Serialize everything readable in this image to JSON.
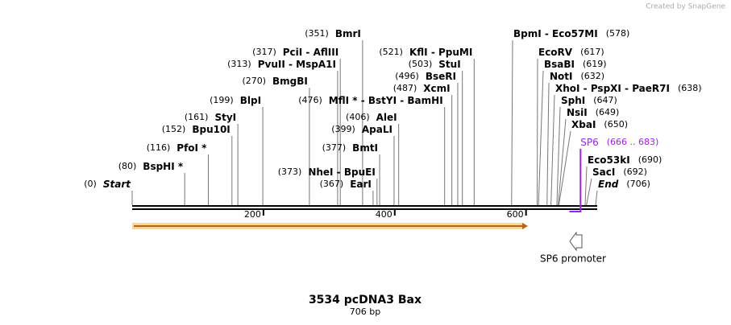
{
  "header": {
    "credit": "Created by SnapGene"
  },
  "sites": [
    {
      "name": "Start",
      "position": {
        "value": 0,
        "label": "(0)"
      }
    },
    {
      "name": "BspHI *",
      "position": {
        "value": 80,
        "label": "(80)"
      }
    },
    {
      "name": "PfoI *",
      "position": {
        "value": 116,
        "label": "(116)"
      }
    },
    {
      "name": "Bpu10I",
      "position": {
        "value": 152,
        "label": "(152)"
      }
    },
    {
      "name": "StyI",
      "position": {
        "value": 161,
        "label": "(161)"
      }
    },
    {
      "name": "BlpI",
      "position": {
        "value": 199,
        "label": "(199)"
      }
    },
    {
      "name": "BmgBI",
      "position": {
        "value": 270,
        "label": "(270)"
      }
    },
    {
      "name": "PvuII  - MspA1I",
      "position": {
        "value": 313,
        "label": "(313)"
      }
    },
    {
      "name": "PciI  - AflIII",
      "position": {
        "value": 317,
        "label": "(317)"
      }
    },
    {
      "name": "BmrI",
      "position": {
        "value": 351,
        "label": "(351)"
      }
    },
    {
      "name": "EarI",
      "position": {
        "value": 367,
        "label": "(367)"
      }
    },
    {
      "name": "NheI  - BpuEI",
      "position": {
        "value": 373,
        "label": "(373)"
      }
    },
    {
      "name": "BmtI",
      "position": {
        "value": 377,
        "label": "(377)"
      }
    },
    {
      "name": "ApaLI",
      "position": {
        "value": 399,
        "label": "(399)"
      }
    },
    {
      "name": "AleI",
      "position": {
        "value": 406,
        "label": "(406)"
      }
    },
    {
      "name": "MflI * - BstYI - BamHI",
      "position": {
        "value": 476,
        "label": "(476)"
      }
    },
    {
      "name": "XcmI",
      "position": {
        "value": 487,
        "label": "(487)"
      }
    },
    {
      "name": "BseRI",
      "position": {
        "value": 496,
        "label": "(496)"
      }
    },
    {
      "name": "StuI",
      "position": {
        "value": 503,
        "label": "(503)"
      }
    },
    {
      "name": "KflI  - PpuMI",
      "position": {
        "value": 521,
        "label": "(521)"
      }
    },
    {
      "name": "BpmI  - Eco57MI",
      "position": {
        "value": 578,
        "label": "(578)"
      }
    },
    {
      "name": "EcoRV",
      "position": {
        "value": 617,
        "label": "(617)"
      }
    },
    {
      "name": "BsaBI",
      "position": {
        "value": 619,
        "label": "(619)"
      }
    },
    {
      "name": "NotI",
      "position": {
        "value": 632,
        "label": "(632)"
      }
    },
    {
      "name": "XhoI  - PspXI  - PaeR7I",
      "position": {
        "value": 638,
        "label": "(638)"
      }
    },
    {
      "name": "SphI",
      "position": {
        "value": 647,
        "label": "(647)"
      }
    },
    {
      "name": "NsiI",
      "position": {
        "value": 649,
        "label": "(649)"
      }
    },
    {
      "name": "XbaI",
      "position": {
        "value": 650,
        "label": "(650)"
      }
    },
    {
      "name": "Eco53kI",
      "position": {
        "value": 690,
        "label": "(690)"
      }
    },
    {
      "name": "SacI",
      "position": {
        "value": 692,
        "label": "(692)"
      }
    },
    {
      "name": "End",
      "position": {
        "value": 706,
        "label": "(706)"
      }
    }
  ],
  "ticks": [
    200,
    400,
    600
  ],
  "primer": {
    "name": "SP6",
    "range": "(666 .. 683)",
    "start": 666,
    "end": 683
  },
  "feature": {
    "name": "SP6 promoter"
  },
  "title": "3534 pcDNA3 Bax",
  "length": "706 bp"
}
